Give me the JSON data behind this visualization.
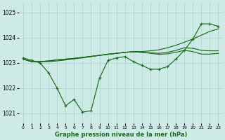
{
  "title": "Graphe pression niveau de la mer (hPa)",
  "bg_color": "#ceeae6",
  "grid_color": "#a8d4cf",
  "line_color": "#1a6b1a",
  "x_ticks": [
    0,
    1,
    2,
    3,
    4,
    5,
    6,
    7,
    8,
    9,
    10,
    11,
    12,
    13,
    14,
    15,
    16,
    17,
    18,
    19,
    20,
    21,
    22,
    23
  ],
  "ylim": [
    1020.6,
    1025.4
  ],
  "yticks": [
    1021,
    1022,
    1023,
    1024,
    1025
  ],
  "series_main": [
    1023.2,
    1023.1,
    1023.0,
    1022.6,
    1022.0,
    1021.3,
    1021.55,
    1021.05,
    1021.1,
    1022.4,
    1023.1,
    1023.2,
    1023.25,
    1023.05,
    1022.9,
    1022.75,
    1022.75,
    1022.85,
    1023.15,
    1023.5,
    1023.95,
    1024.55,
    1024.55,
    1024.45
  ],
  "series_a": [
    1023.15,
    1023.05,
    1023.05,
    1023.05,
    1023.08,
    1023.12,
    1023.16,
    1023.2,
    1023.25,
    1023.3,
    1023.35,
    1023.38,
    1023.42,
    1023.45,
    1023.45,
    1023.48,
    1023.52,
    1023.6,
    1023.7,
    1023.82,
    1023.95,
    1024.1,
    1024.25,
    1024.35
  ],
  "series_b": [
    1023.15,
    1023.05,
    1023.05,
    1023.08,
    1023.12,
    1023.15,
    1023.18,
    1023.22,
    1023.26,
    1023.3,
    1023.34,
    1023.38,
    1023.42,
    1023.44,
    1023.42,
    1023.4,
    1023.38,
    1023.42,
    1023.5,
    1023.6,
    1023.58,
    1023.5,
    1023.48,
    1023.48
  ],
  "series_c": [
    1023.15,
    1023.05,
    1023.05,
    1023.08,
    1023.12,
    1023.15,
    1023.18,
    1023.22,
    1023.26,
    1023.3,
    1023.34,
    1023.38,
    1023.42,
    1023.44,
    1023.42,
    1023.38,
    1023.34,
    1023.36,
    1023.42,
    1023.5,
    1023.45,
    1023.35,
    1023.35,
    1023.38
  ]
}
